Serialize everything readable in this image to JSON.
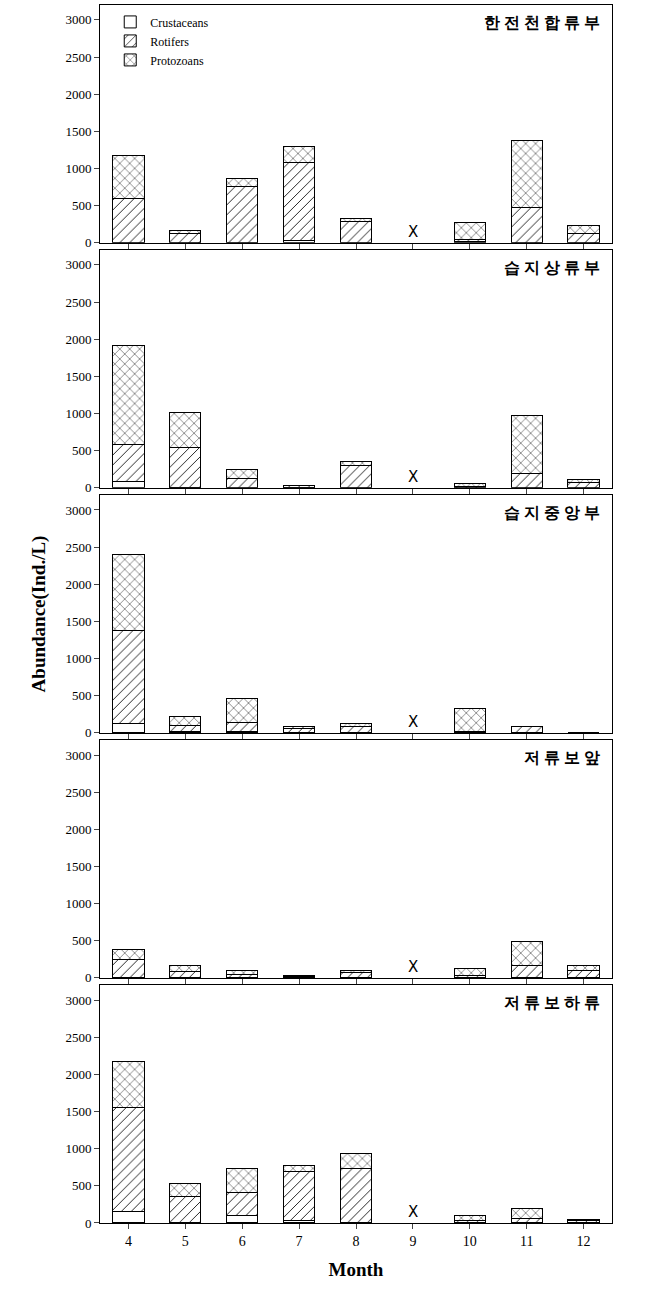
{
  "chart_data": [
    {
      "type": "bar",
      "title": "한 전 천 합 류 부",
      "stacked": true,
      "legend": "upper left",
      "tick_labels": "y",
      "categories": [
        "4",
        "5",
        "6",
        "7",
        "8",
        "9",
        "10",
        "11",
        "12"
      ],
      "series": [
        {
          "name": "Crustaceans",
          "color": "#ffffff",
          "marker": "solid",
          "values": [
            0,
            0,
            0,
            30,
            0,
            null,
            20,
            0,
            0
          ]
        },
        {
          "name": "Rotifers",
          "color": "#ffffff",
          "marker": "diagonal",
          "values": [
            590,
            120,
            760,
            1050,
            290,
            null,
            30,
            470,
            130
          ]
        },
        {
          "name": "Protozoans",
          "color": "#ffffff",
          "marker": "crosshatch",
          "values": [
            590,
            50,
            110,
            210,
            40,
            null,
            220,
            900,
            100
          ]
        }
      ],
      "annotations": [
        {
          "text": "X",
          "x": "9",
          "y": 150
        }
      ],
      "ylim": [
        0,
        3200
      ],
      "yticks": [
        0,
        500,
        1000,
        1500,
        2000,
        2500,
        3000
      ]
    },
    {
      "type": "bar",
      "title": "습 지 상 류 부",
      "stacked": true,
      "tick_labels": "y",
      "categories": [
        "4",
        "5",
        "6",
        "7",
        "8",
        "9",
        "10",
        "11",
        "12"
      ],
      "series": [
        {
          "name": "Crustaceans",
          "color": "#ffffff",
          "marker": "solid",
          "values": [
            80,
            10,
            0,
            10,
            0,
            null,
            0,
            0,
            0
          ]
        },
        {
          "name": "Rotifers",
          "color": "#ffffff",
          "marker": "diagonal",
          "values": [
            500,
            530,
            130,
            20,
            300,
            null,
            20,
            190,
            70
          ]
        },
        {
          "name": "Protozoans",
          "color": "#ffffff",
          "marker": "crosshatch",
          "values": [
            1330,
            470,
            110,
            0,
            50,
            null,
            40,
            780,
            40
          ]
        }
      ],
      "annotations": [
        {
          "text": "X",
          "x": "9",
          "y": 150
        }
      ],
      "ylim": [
        0,
        3200
      ],
      "yticks": [
        0,
        500,
        1000,
        1500,
        2000,
        2500,
        3000
      ]
    },
    {
      "type": "bar",
      "title": "습 지 중 앙 부",
      "stacked": true,
      "tick_labels": "y",
      "y_label": "Abundance(Ind./L)",
      "categories": [
        "4",
        "5",
        "6",
        "7",
        "8",
        "9",
        "10",
        "11",
        "12"
      ],
      "series": [
        {
          "name": "Crustaceans",
          "color": "#ffffff",
          "marker": "solid",
          "values": [
            130,
            20,
            20,
            0,
            0,
            null,
            0,
            0,
            0
          ]
        },
        {
          "name": "Rotifers",
          "color": "#ffffff",
          "marker": "diagonal",
          "values": [
            1250,
            80,
            120,
            60,
            90,
            null,
            20,
            80,
            0
          ]
        },
        {
          "name": "Protozoans",
          "color": "#ffffff",
          "marker": "crosshatch",
          "values": [
            1020,
            120,
            320,
            20,
            30,
            null,
            310,
            10,
            0
          ]
        }
      ],
      "annotations": [
        {
          "text": "X",
          "x": "9",
          "y": 150
        }
      ],
      "ylim": [
        0,
        3200
      ],
      "yticks": [
        0,
        500,
        1000,
        1500,
        2000,
        2500,
        3000
      ]
    },
    {
      "type": "bar",
      "title": "저 류 보 앞",
      "stacked": true,
      "tick_labels": "y",
      "categories": [
        "4",
        "5",
        "6",
        "7",
        "8",
        "9",
        "10",
        "11",
        "12"
      ],
      "series": [
        {
          "name": "Crustaceans",
          "color": "#ffffff",
          "marker": "solid",
          "values": [
            0,
            10,
            0,
            0,
            0,
            null,
            0,
            0,
            0
          ]
        },
        {
          "name": "Rotifers",
          "color": "#ffffff",
          "marker": "diagonal",
          "values": [
            250,
            70,
            50,
            20,
            70,
            null,
            30,
            170,
            100
          ]
        },
        {
          "name": "Protozoans",
          "color": "#ffffff",
          "marker": "crosshatch",
          "values": [
            130,
            90,
            50,
            10,
            30,
            null,
            100,
            320,
            70
          ]
        }
      ],
      "annotations": [
        {
          "text": "X",
          "x": "9",
          "y": 150
        }
      ],
      "ylim": [
        0,
        3200
      ],
      "yticks": [
        0,
        500,
        1000,
        1500,
        2000,
        2500,
        3000
      ]
    },
    {
      "type": "bar",
      "title": "저 류 보 하 류",
      "stacked": true,
      "x_label": "Month",
      "categories": [
        "4",
        "5",
        "6",
        "7",
        "8",
        "9",
        "10",
        "11",
        "12"
      ],
      "series": [
        {
          "name": "Crustaceans",
          "color": "#ffffff",
          "marker": "solid",
          "values": [
            160,
            0,
            100,
            30,
            10,
            null,
            0,
            0,
            0
          ]
        },
        {
          "name": "Rotifers",
          "color": "#ffffff",
          "marker": "diagonal",
          "values": [
            1400,
            360,
            310,
            660,
            730,
            null,
            40,
            60,
            30
          ]
        },
        {
          "name": "Protozoans",
          "color": "#ffffff",
          "marker": "crosshatch",
          "values": [
            620,
            170,
            330,
            90,
            190,
            null,
            60,
            140,
            20
          ]
        }
      ],
      "annotations": [
        {
          "text": "X",
          "x": "9",
          "y": 150
        }
      ],
      "ylim": [
        0,
        3200
      ],
      "yticks": [
        0,
        500,
        1000,
        1500,
        2000,
        2500,
        3000
      ]
    }
  ]
}
